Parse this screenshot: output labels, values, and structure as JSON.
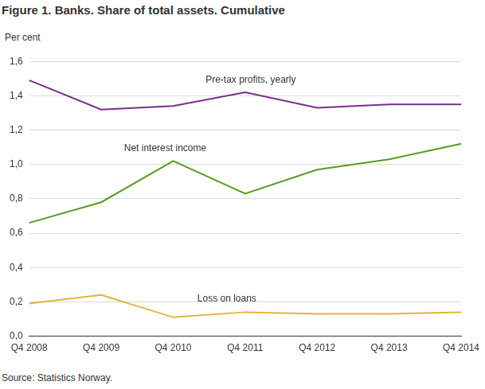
{
  "chart_data": {
    "type": "line",
    "title": "Figure 1. Banks. Share of total assets. Cumulative",
    "y_label": "Per cent",
    "source": "Source: Statistics Norway.",
    "categories": [
      "Q4 2008",
      "Q4 2009",
      "Q4 2010",
      "Q4 2011",
      "Q4 2012",
      "Q4 2013",
      "Q4 2014"
    ],
    "series": [
      {
        "name": "Pre-tax profits, yearly",
        "color": "#7b2d8e",
        "values": [
          1.49,
          1.32,
          1.34,
          1.42,
          1.33,
          1.35,
          1.35
        ]
      },
      {
        "name": "Net interest income",
        "color": "#5b9b1d",
        "values": [
          0.66,
          0.78,
          1.02,
          0.83,
          0.97,
          1.03,
          1.12
        ]
      },
      {
        "name": "Loss on loans",
        "color": "#e6b33a",
        "values": [
          0.19,
          0.24,
          0.11,
          0.14,
          0.13,
          0.13,
          0.14
        ]
      }
    ],
    "ylim": [
      0,
      1.6
    ],
    "yticks": [
      {
        "value": 0,
        "label": "0,0"
      },
      {
        "value": 0.2,
        "label": "0,2"
      },
      {
        "value": 0.4,
        "label": "0,4"
      },
      {
        "value": 0.6,
        "label": "0,6"
      },
      {
        "value": 0.8,
        "label": "0,8"
      },
      {
        "value": 1.0,
        "label": "1,0"
      },
      {
        "value": 1.2,
        "label": "1,2"
      },
      {
        "value": 1.4,
        "label": "1,4"
      },
      {
        "value": 1.6,
        "label": "1,6"
      }
    ],
    "grid": true
  }
}
